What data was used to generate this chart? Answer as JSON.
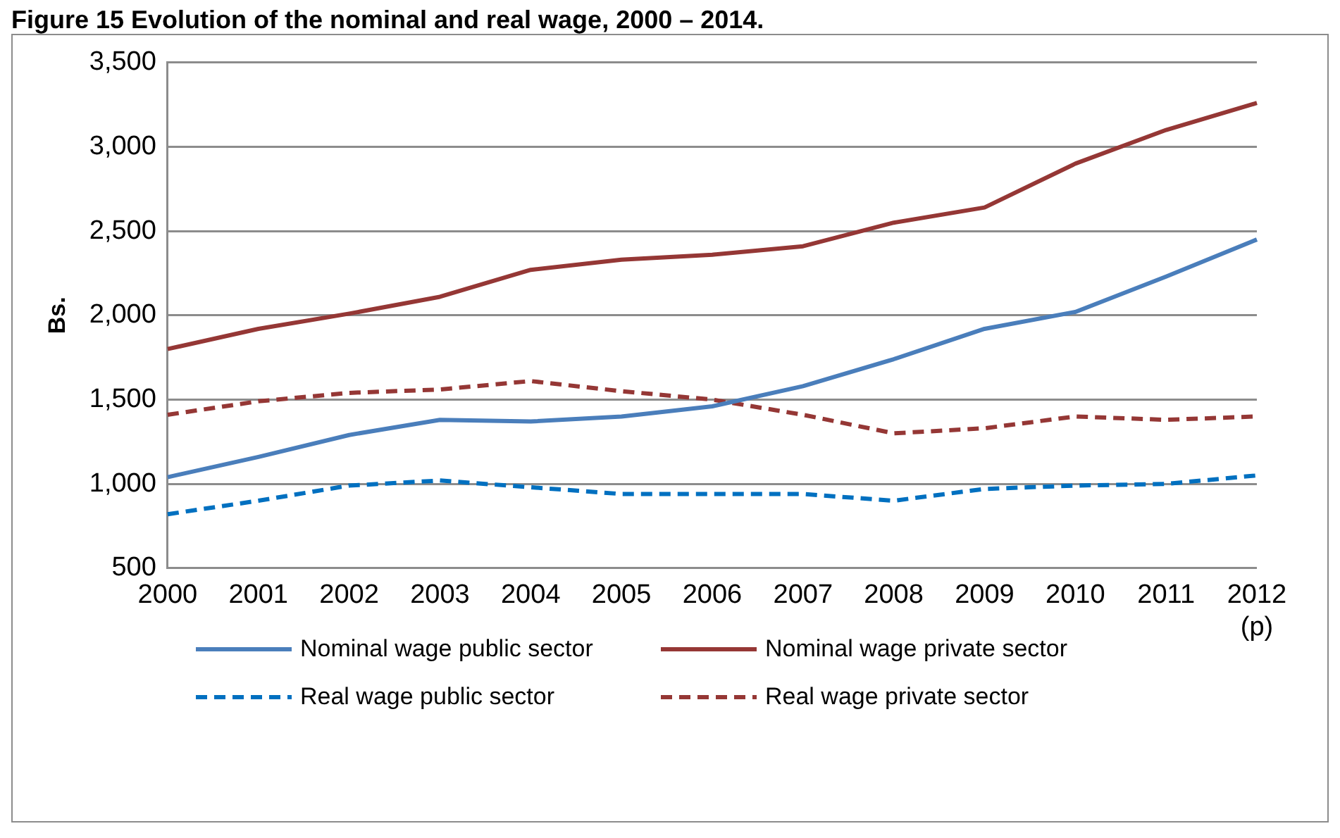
{
  "chart_data": {
    "type": "line",
    "title": "Figure 15 Evolution of the nominal and real wage, 2000 – 2014.",
    "ylabel": "Bs.",
    "categories": [
      "2000",
      "2001",
      "2002",
      "2003",
      "2004",
      "2005",
      "2006",
      "2007",
      "2008",
      "2009",
      "2010",
      "2011",
      "2012\n(p)"
    ],
    "series": [
      {
        "name": "Nominal wage public sector",
        "color": "#4a7ebb",
        "line_style": "solid",
        "values": [
          1040,
          1160,
          1290,
          1380,
          1370,
          1400,
          1460,
          1580,
          1740,
          1920,
          2020,
          2230,
          2450
        ]
      },
      {
        "name": "Nominal wage private sector",
        "color": "#953735",
        "line_style": "solid",
        "values": [
          1800,
          1920,
          2010,
          2110,
          2270,
          2330,
          2360,
          2410,
          2550,
          2640,
          2900,
          3100,
          3260
        ]
      },
      {
        "name": "Real wage public sector",
        "color": "#0070c0",
        "line_style": "dashed",
        "values": [
          820,
          900,
          990,
          1020,
          980,
          940,
          940,
          940,
          900,
          970,
          990,
          1000,
          1050
        ]
      },
      {
        "name": "Real wage private sector",
        "color": "#953735",
        "line_style": "dashed",
        "values": [
          1410,
          1490,
          1540,
          1560,
          1610,
          1550,
          1500,
          1410,
          1300,
          1330,
          1400,
          1380,
          1400
        ]
      }
    ],
    "ylim": [
      500,
      3500
    ],
    "yticks": [
      500,
      {
        "value": 1000,
        "label": "1,000"
      },
      {
        "value": 1500,
        "label": "1,500"
      },
      {
        "value": 2000,
        "label": "2,000"
      },
      {
        "value": 2500,
        "label": "2,500"
      },
      {
        "value": 3000,
        "label": "3,000"
      },
      {
        "value": 3500,
        "label": "3,500"
      }
    ],
    "grid": "y",
    "legend": "bottom",
    "marker": "none"
  }
}
